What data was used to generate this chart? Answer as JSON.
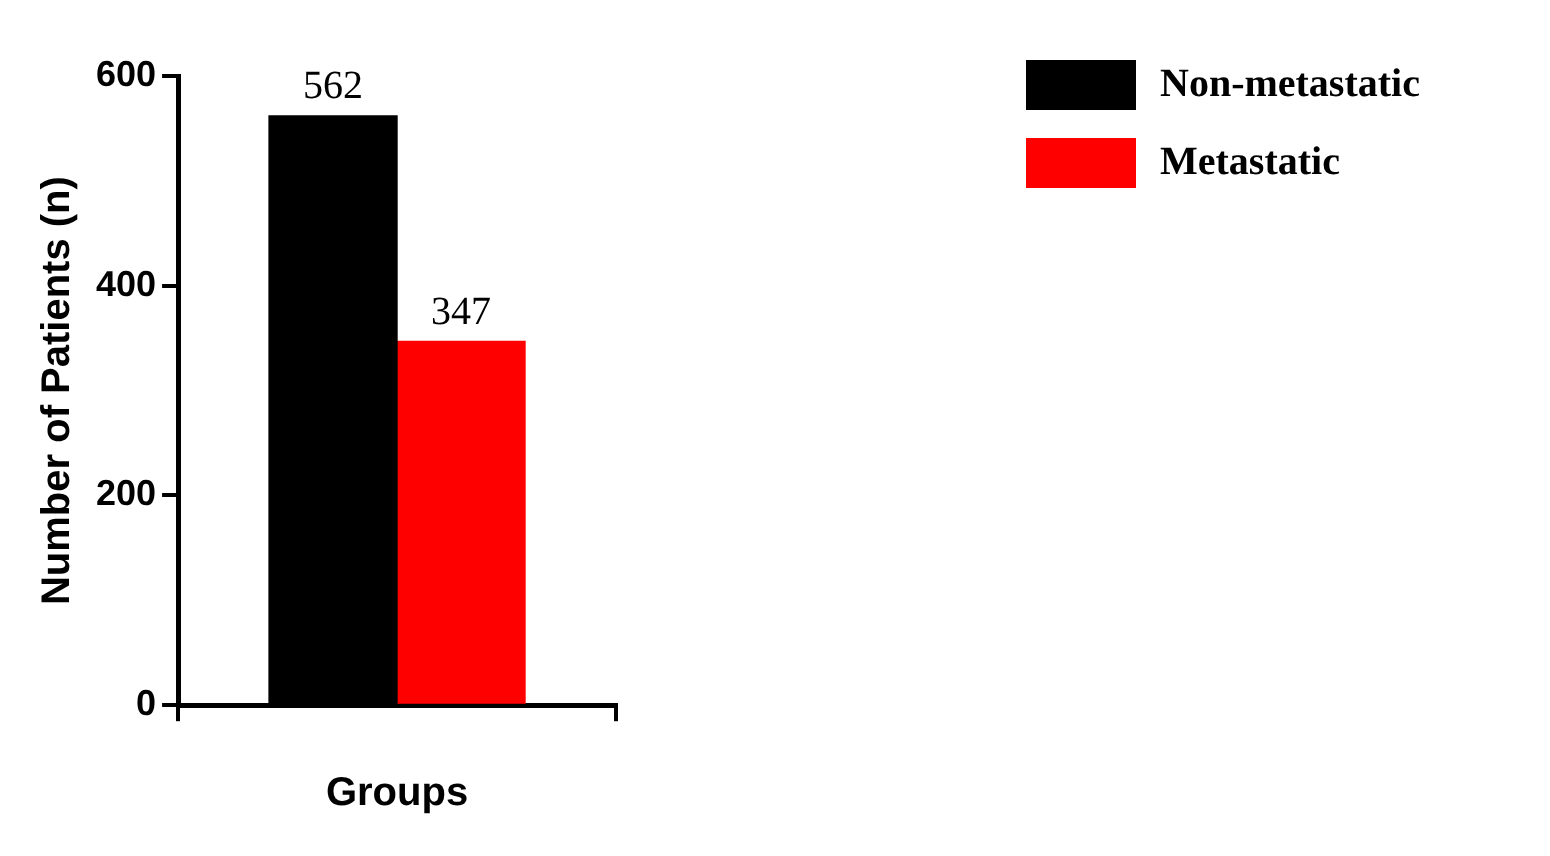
{
  "chart_data": {
    "type": "bar",
    "xlabel": "Groups",
    "ylabel": "Number of Patients (n)",
    "categories": [
      null
    ],
    "series": [
      {
        "name": "Non-metastatic",
        "color": "#000000",
        "values": [
          562
        ]
      },
      {
        "name": "Metastatic",
        "color": "#ff0000",
        "values": [
          347
        ]
      }
    ],
    "ylim": [
      0,
      600
    ],
    "yticks": [
      0,
      200,
      400,
      600
    ],
    "grid": false,
    "legend": "top right",
    "data_labels": true
  }
}
